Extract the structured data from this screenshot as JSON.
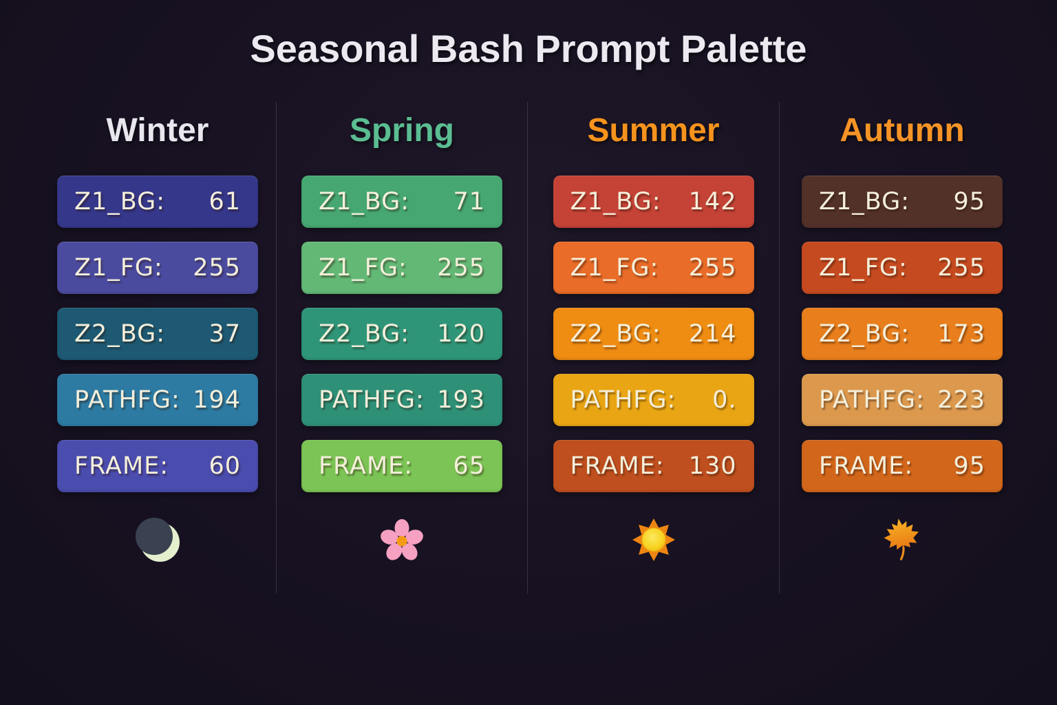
{
  "title": "Seasonal Bash Prompt Palette",
  "theme": {
    "page_bg": "#171121",
    "divider_color": "rgba(140,128,170,0.28)",
    "badge_text_color": "#f4efdb",
    "title_color": "#eceaf0"
  },
  "columns": [
    {
      "name": "Winter",
      "header_color": "#e9e7ee",
      "icon": "crescent-moon-icon",
      "rows": [
        {
          "label": "Z1_BG:",
          "value": "61",
          "bg": "#35378a"
        },
        {
          "label": "Z1_FG:",
          "value": "255",
          "bg": "#4a4b9f"
        },
        {
          "label": "Z2_BG:",
          "value": "37",
          "bg": "#1d5973"
        },
        {
          "label": "PATHFG:",
          "value": "194",
          "bg": "#2d7ba3"
        },
        {
          "label": "FRAME:",
          "value": "60",
          "bg": "#4a4cae"
        }
      ]
    },
    {
      "name": "Spring",
      "header_color": "#5bbd92",
      "icon": "cherry-blossom-icon",
      "rows": [
        {
          "label": "Z1_BG:",
          "value": "71",
          "bg": "#46a772"
        },
        {
          "label": "Z1_FG:",
          "value": "255",
          "bg": "#63b876"
        },
        {
          "label": "Z2_BG:",
          "value": "120",
          "bg": "#2f9578"
        },
        {
          "label": "PATHFG:",
          "value": "193",
          "bg": "#2e9077"
        },
        {
          "label": "FRAME:",
          "value": "65",
          "bg": "#7cc455"
        }
      ]
    },
    {
      "name": "Summer",
      "header_color": "#f6931d",
      "icon": "sun-icon",
      "rows": [
        {
          "label": "Z1_BG:",
          "value": "142",
          "bg": "#c44336"
        },
        {
          "label": "Z1_FG:",
          "value": "255",
          "bg": "#e96c28"
        },
        {
          "label": "Z2_BG:",
          "value": "214",
          "bg": "#ef8c12"
        },
        {
          "label": "PATHFG:",
          "value": "0.",
          "bg": "#e9a513"
        },
        {
          "label": "FRAME:",
          "value": "130",
          "bg": "#bf4f1e"
        }
      ]
    },
    {
      "name": "Autumn",
      "header_color": "#f69426",
      "icon": "maple-leaf-icon",
      "rows": [
        {
          "label": "Z1_BG:",
          "value": "95",
          "bg": "#523129"
        },
        {
          "label": "Z1_FG:",
          "value": "255",
          "bg": "#c64a20"
        },
        {
          "label": "Z2_BG:",
          "value": "173",
          "bg": "#e87e1c"
        },
        {
          "label": "PATHFG:",
          "value": "223",
          "bg": "#dc994e"
        },
        {
          "label": "FRAME:",
          "value": "95",
          "bg": "#d2661b"
        }
      ]
    }
  ]
}
